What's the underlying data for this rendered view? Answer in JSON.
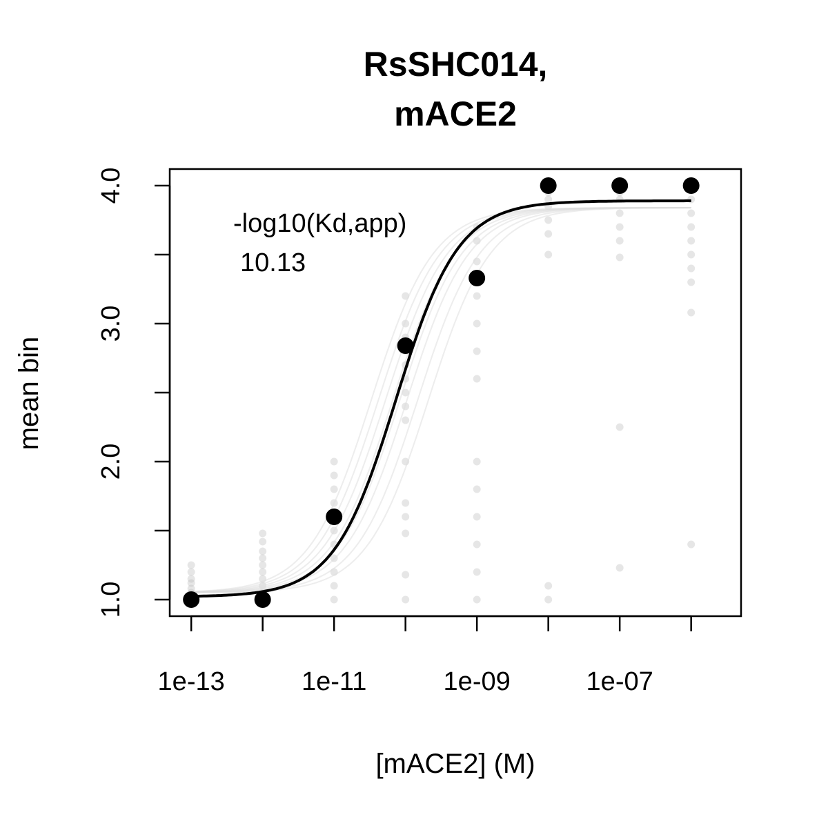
{
  "chart_data": {
    "type": "scatter",
    "title": [
      "RsSHC014,",
      "mACE2"
    ],
    "xlabel": "[mACE2] (M)",
    "ylabel": "mean bin",
    "x_scale": "log10",
    "xlim": [
      5e-14,
      5e-06
    ],
    "ylim": [
      0.88,
      4.12
    ],
    "x_ticks": [
      {
        "value": 1e-13,
        "label": "1e-13"
      },
      {
        "value": 1e-11,
        "label": "1e-11"
      },
      {
        "value": 1e-09,
        "label": "1e-09"
      },
      {
        "value": 1e-07,
        "label": "1e-07"
      }
    ],
    "x_minor_ticks": [
      1e-12,
      1e-10,
      1e-08,
      1e-06
    ],
    "y_ticks": [
      {
        "value": 1.0,
        "label": "1.0"
      },
      {
        "value": 2.0,
        "label": "2.0"
      },
      {
        "value": 3.0,
        "label": "3.0"
      },
      {
        "value": 4.0,
        "label": "4.0"
      }
    ],
    "y_minor_ticks": [
      1.5,
      2.5,
      3.5
    ],
    "grid": false,
    "annotation": [
      "-log10(Kd,app)",
      "10.13"
    ],
    "points": {
      "x": [
        1e-13,
        1e-12,
        1e-11,
        1e-10,
        1e-09,
        1e-08,
        1e-07,
        1e-06
      ],
      "y": [
        1.0,
        1.0,
        1.6,
        2.84,
        3.33,
        4.0,
        4.0,
        4.0
      ]
    },
    "fit": {
      "model": "hill",
      "log10_kd": -10.13,
      "bottom": 1.02,
      "top": 3.89,
      "hill": 1.0
    },
    "bootstrap_points": [
      {
        "x": 1e-13,
        "y": [
          1.0,
          1.02,
          1.05,
          1.08,
          1.12,
          1.15,
          1.2,
          1.25
        ]
      },
      {
        "x": 1e-12,
        "y": [
          1.0,
          1.05,
          1.1,
          1.15,
          1.2,
          1.25,
          1.3,
          1.35,
          1.42,
          1.48
        ]
      },
      {
        "x": 1e-11,
        "y": [
          1.0,
          1.1,
          1.2,
          1.3,
          1.4,
          1.5,
          1.6,
          1.7,
          1.8,
          1.9,
          2.0
        ]
      },
      {
        "x": 1e-10,
        "y": [
          1.0,
          1.18,
          1.48,
          1.6,
          1.7,
          2.0,
          2.3,
          2.4,
          2.5,
          2.6,
          2.7,
          2.8,
          2.9,
          3.0,
          3.2
        ]
      },
      {
        "x": 1e-09,
        "y": [
          1.0,
          1.2,
          1.4,
          1.6,
          1.8,
          2.0,
          2.6,
          2.8,
          3.0,
          3.2,
          3.35,
          3.45,
          3.6,
          3.7
        ]
      },
      {
        "x": 1e-08,
        "y": [
          1.0,
          1.1,
          3.5,
          3.65,
          3.75,
          3.85,
          3.9,
          3.95
        ]
      },
      {
        "x": 1e-07,
        "y": [
          1.23,
          2.25,
          3.48,
          3.6,
          3.7,
          3.8,
          3.9,
          3.95
        ]
      },
      {
        "x": 1e-06,
        "y": [
          1.4,
          3.08,
          3.3,
          3.4,
          3.5,
          3.6,
          3.7,
          3.8,
          3.9
        ]
      }
    ]
  }
}
